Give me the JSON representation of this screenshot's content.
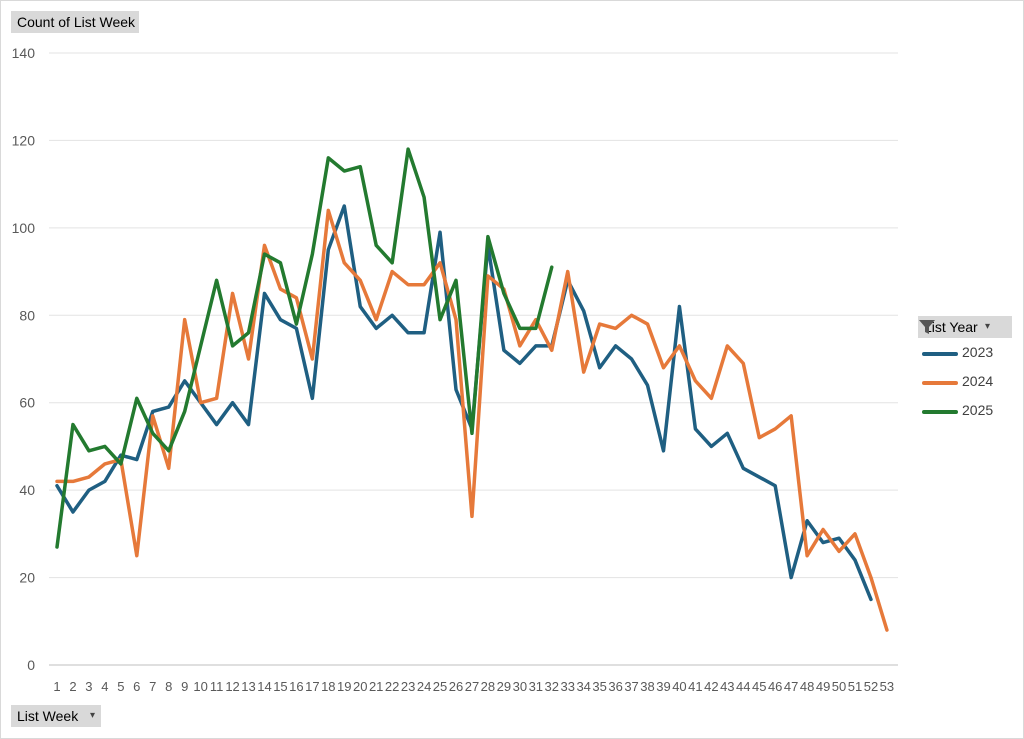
{
  "value_field": {
    "label": "Count of List Week"
  },
  "axis_field": {
    "label": "List Week",
    "dropdown_icon": "dropdown-arrow-icon"
  },
  "legend_field": {
    "label": "List Year",
    "dropdown_icon": "dropdown-arrow-icon",
    "filter_icon": "filter-funnel-icon"
  },
  "chart_data": {
    "type": "line",
    "title": "",
    "xlabel": "",
    "ylabel": "",
    "ylim": [
      0,
      140
    ],
    "yticks": [
      0,
      20,
      40,
      60,
      80,
      100,
      120,
      140
    ],
    "grid": true,
    "legend_placement": "right",
    "categories": [
      "1",
      "2",
      "3",
      "4",
      "5",
      "6",
      "7",
      "8",
      "9",
      "10",
      "11",
      "12",
      "13",
      "14",
      "15",
      "16",
      "17",
      "18",
      "19",
      "20",
      "21",
      "22",
      "23",
      "24",
      "25",
      "26",
      "27",
      "28",
      "29",
      "30",
      "31",
      "32",
      "33",
      "34",
      "35",
      "36",
      "37",
      "38",
      "39",
      "40",
      "41",
      "42",
      "43",
      "44",
      "45",
      "46",
      "47",
      "48",
      "49",
      "50",
      "51",
      "52",
      "53"
    ],
    "series": [
      {
        "name": "2023",
        "color": "#1f5f82",
        "values": [
          41,
          35,
          40,
          42,
          48,
          47,
          58,
          59,
          65,
          60,
          55,
          60,
          55,
          85,
          79,
          77,
          61,
          95,
          105,
          82,
          77,
          80,
          76,
          76,
          99,
          63,
          54,
          96,
          72,
          69,
          73,
          73,
          88,
          81,
          68,
          73,
          70,
          64,
          49,
          82,
          54,
          50,
          53,
          45,
          43,
          41,
          20,
          33,
          28,
          29,
          24,
          15,
          null
        ]
      },
      {
        "name": "2024",
        "color": "#e6793a",
        "values": [
          42,
          42,
          43,
          46,
          47,
          25,
          57,
          45,
          79,
          60,
          61,
          85,
          70,
          96,
          86,
          84,
          70,
          104,
          92,
          88,
          79,
          90,
          87,
          87,
          92,
          79,
          34,
          89,
          86,
          73,
          79,
          72,
          90,
          67,
          78,
          77,
          80,
          78,
          68,
          73,
          65,
          61,
          73,
          69,
          52,
          54,
          57,
          25,
          31,
          26,
          30,
          20,
          8
        ]
      },
      {
        "name": "2025",
        "color": "#237a2f",
        "values": [
          27,
          55,
          49,
          50,
          46,
          61,
          53,
          49,
          58,
          73,
          88,
          73,
          76,
          94,
          92,
          78,
          94,
          116,
          113,
          114,
          96,
          92,
          118,
          107,
          79,
          88,
          53,
          98,
          85,
          77,
          77,
          91,
          null,
          null,
          null,
          null,
          null,
          null,
          null,
          null,
          null,
          null,
          null,
          null,
          null,
          null,
          null,
          null,
          null,
          null,
          null,
          null,
          null
        ]
      }
    ]
  }
}
